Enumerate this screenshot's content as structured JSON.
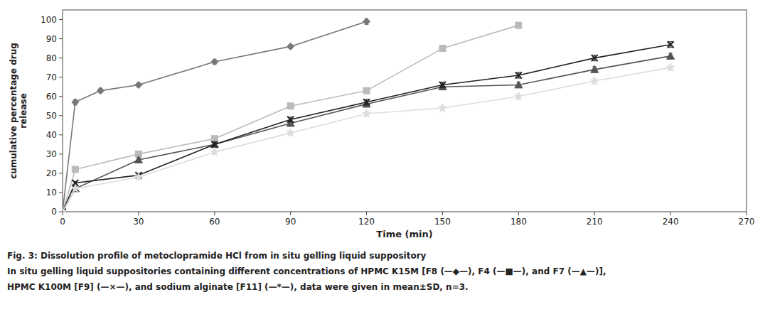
{
  "chart_data": {
    "type": "line",
    "xlabel": "Time (min)",
    "ylabel": "cumulative percentage drug\nrelease",
    "annotations": [
      "Fig. 3: Dissolution profile of metoclopramide HCl from in situ gelling liquid suppository",
      "In situ gelling liquid suppositories containing different concentrations of HPMC K15M [F8 (—◆—), F4 (—■—), and F7 (—▲—)],",
      "HPMC K100M [F9] (—×—), and sodium alginate [F11] (—*—), data were given in mean±SD, n=3."
    ],
    "series": [
      {
        "color": "#777777",
        "marker": "diamond",
        "x": [
          0,
          5,
          15,
          30,
          60,
          90,
          120
        ],
        "values": [
          0,
          57,
          63,
          66,
          78,
          86,
          99
        ],
        "yerr": [
          0.0,
          1.5,
          1.2,
          1.0,
          1.2,
          1.0,
          1.5
        ]
      },
      {
        "color": "#bbbbbb",
        "marker": "square",
        "x": [
          0,
          5,
          30,
          60,
          90,
          120,
          150,
          180
        ],
        "values": [
          0,
          22,
          30,
          38,
          55,
          63,
          85,
          97
        ],
        "yerr": [
          0.0,
          1.0,
          1.0,
          1.2,
          1.2,
          1.5,
          1.5,
          1.5
        ]
      },
      {
        "color": "#555555",
        "marker": "triangle",
        "x": [
          0,
          5,
          30,
          60,
          90,
          120,
          150,
          180,
          210,
          240
        ],
        "values": [
          0,
          12,
          27,
          35,
          46,
          56,
          65,
          66,
          74,
          81
        ],
        "yerr": [
          0.0,
          0.8,
          1.0,
          1.2,
          1.2,
          1.5,
          1.5,
          1.5,
          1.5,
          1.5
        ]
      },
      {
        "color": "#222222",
        "marker": "x",
        "x": [
          0,
          5,
          30,
          60,
          90,
          120,
          150,
          180,
          210,
          240
        ],
        "values": [
          0,
          15,
          19,
          35,
          48,
          57,
          66,
          71,
          80,
          87
        ],
        "yerr": [
          0.0,
          0.8,
          1.0,
          1.2,
          1.2,
          1.5,
          1.5,
          1.5,
          1.5,
          1.5
        ]
      },
      {
        "color": "#dddddd",
        "marker": "star",
        "x": [
          0,
          5,
          30,
          60,
          90,
          120,
          150,
          180,
          210,
          240
        ],
        "values": [
          0,
          12,
          18,
          31,
          41,
          51,
          54,
          60,
          68,
          75
        ],
        "yerr": [
          0.0,
          0.8,
          1.0,
          1.2,
          1.2,
          1.5,
          1.5,
          1.5,
          1.5,
          1.5
        ]
      }
    ],
    "xlim": [
      0,
      270
    ],
    "ylim": [
      0,
      105
    ],
    "xticks": [
      0,
      30,
      60,
      90,
      120,
      150,
      180,
      210,
      240,
      270
    ],
    "yticks": [
      0,
      10,
      20,
      30,
      40,
      50,
      60,
      70,
      80,
      90,
      100
    ],
    "grid": false
  }
}
